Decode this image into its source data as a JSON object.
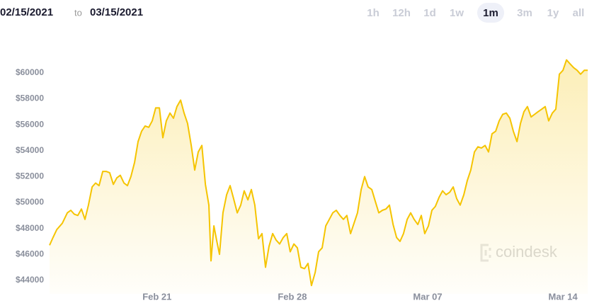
{
  "header": {
    "start_date": "02/15/2021",
    "separator": "to",
    "end_date": "03/15/2021"
  },
  "ranges": [
    "1h",
    "12h",
    "1d",
    "1w",
    "1m",
    "3m",
    "1y",
    "all"
  ],
  "active_range_index": 4,
  "watermark": "coindesk",
  "chart_data": {
    "type": "line",
    "color": "#f5c400",
    "x": [
      0.44,
      0.62,
      0.81,
      1.1,
      1.36,
      1.54,
      1.72,
      1.9,
      2.09,
      2.27,
      2.45,
      2.64,
      2.82,
      3.0,
      3.19,
      3.37,
      3.55,
      3.74,
      3.92,
      4.1,
      4.29,
      4.47,
      4.65,
      4.84,
      5.02,
      5.2,
      5.38,
      5.57,
      5.75,
      5.93,
      6.12,
      6.3,
      6.48,
      6.67,
      6.85,
      7.03,
      7.22,
      7.4,
      7.58,
      7.77,
      7.95,
      8.13,
      8.32,
      8.5,
      8.68,
      8.79,
      8.94,
      9.08,
      9.23,
      9.41,
      9.6,
      9.78,
      9.96,
      10.15,
      10.33,
      10.51,
      10.7,
      10.88,
      11.06,
      11.25,
      11.43,
      11.61,
      11.79,
      11.98,
      12.16,
      12.34,
      12.53,
      12.71,
      12.89,
      13.08,
      13.26,
      13.44,
      13.63,
      13.81,
      13.99,
      14.18,
      14.36,
      14.54,
      14.73,
      14.91,
      15.09,
      15.27,
      15.46,
      15.64,
      15.82,
      16.01,
      16.19,
      16.37,
      16.56,
      16.74,
      16.92,
      17.11,
      17.29,
      17.47,
      17.66,
      17.84,
      18.02,
      18.21,
      18.39,
      18.57,
      18.75,
      18.94,
      19.12,
      19.3,
      19.49,
      19.67,
      19.85,
      20.04,
      20.22,
      20.4,
      20.59,
      20.77,
      20.95,
      21.14,
      21.32,
      21.5,
      21.68,
      21.87,
      22.05,
      22.23,
      22.42,
      22.6,
      22.78,
      22.97,
      23.15,
      23.33,
      23.52,
      23.7,
      23.88,
      24.07,
      24.25,
      24.43,
      24.62,
      24.8,
      24.98,
      25.16,
      25.35,
      25.53,
      25.71,
      25.9,
      26.08,
      26.26,
      26.45,
      26.63,
      26.81,
      27.0,
      27.18,
      27.36,
      27.55,
      27.73,
      27.91,
      28.1,
      28.28
    ],
    "values": [
      46700,
      47300,
      47900,
      48400,
      49200,
      49400,
      49100,
      49000,
      49500,
      48700,
      49800,
      51200,
      51500,
      51300,
      52400,
      52400,
      52300,
      51400,
      51900,
      52100,
      51500,
      51300,
      52000,
      53100,
      54700,
      55500,
      55900,
      55800,
      56300,
      57300,
      57300,
      55000,
      56300,
      56900,
      56500,
      57400,
      57900,
      56900,
      56100,
      54400,
      52500,
      53900,
      54400,
      51400,
      49800,
      45500,
      48200,
      47100,
      46000,
      49200,
      50600,
      51300,
      50300,
      49200,
      49800,
      50900,
      50200,
      51000,
      49800,
      47200,
      47600,
      45000,
      46600,
      47600,
      47100,
      46800,
      47300,
      47600,
      46200,
      46800,
      46500,
      45000,
      44900,
      45300,
      43600,
      44600,
      46200,
      46500,
      48200,
      48700,
      49200,
      49400,
      49000,
      48700,
      49000,
      47600,
      48400,
      49200,
      51000,
      52000,
      51200,
      51000,
      50100,
      49200,
      49400,
      49500,
      49800,
      48300,
      47300,
      47000,
      47600,
      48700,
      49200,
      48700,
      48300,
      49000,
      47600,
      48200,
      49400,
      49700,
      50400,
      50900,
      50600,
      50800,
      51200,
      50300,
      49800,
      50600,
      51700,
      52500,
      53900,
      54300,
      54200,
      54400,
      53900,
      55300,
      55500,
      56300,
      56800,
      56900,
      56500,
      55500,
      54700,
      56100,
      57000,
      57400,
      56600,
      56800,
      57000,
      57200,
      57400,
      56300,
      56900,
      57200,
      59900,
      60200,
      61000,
      60700,
      60400,
      60200,
      59900,
      60200,
      60200
    ],
    "xlim": [
      0.44,
      28.35
    ],
    "xticks": [
      {
        "value": 6,
        "label": "Feb 21"
      },
      {
        "value": 13,
        "label": "Feb 28"
      },
      {
        "value": 20,
        "label": "Mar 07"
      },
      {
        "value": 27,
        "label": "Mar 14"
      }
    ],
    "ylim": [
      43500,
      63000
    ],
    "yticks": [
      {
        "value": 44000,
        "label": "$44000"
      },
      {
        "value": 46000,
        "label": "$46000"
      },
      {
        "value": 48000,
        "label": "$48000"
      },
      {
        "value": 50000,
        "label": "$50000"
      },
      {
        "value": 52000,
        "label": "$52000"
      },
      {
        "value": 54000,
        "label": "$54000"
      },
      {
        "value": 56000,
        "label": "$56000"
      },
      {
        "value": 58000,
        "label": "$58000"
      },
      {
        "value": 60000,
        "label": "$60000"
      }
    ],
    "grid": false
  }
}
